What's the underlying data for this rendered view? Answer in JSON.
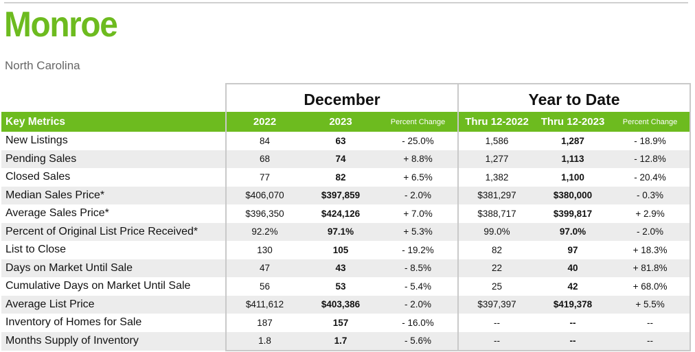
{
  "title": "Monroe",
  "subtitle": "North Carolina",
  "groups": {
    "month": "December",
    "ytd": "Year to Date"
  },
  "headers": [
    "Key Metrics",
    "2022",
    "2023",
    "Percent Change",
    "Thru 12-2022",
    "Thru 12-2023",
    "Percent Change"
  ],
  "colors": {
    "accent": "#6dbb1f",
    "stripe": "#ececec"
  },
  "rows": [
    [
      "New Listings",
      "84",
      "63",
      "- 25.0%",
      "1,586",
      "1,287",
      "- 18.9%"
    ],
    [
      "Pending Sales",
      "68",
      "74",
      "+ 8.8%",
      "1,277",
      "1,113",
      "- 12.8%"
    ],
    [
      "Closed Sales",
      "77",
      "82",
      "+ 6.5%",
      "1,382",
      "1,100",
      "- 20.4%"
    ],
    [
      "Median Sales Price*",
      "$406,070",
      "$397,859",
      "- 2.0%",
      "$381,297",
      "$380,000",
      "- 0.3%"
    ],
    [
      "Average Sales Price*",
      "$396,350",
      "$424,126",
      "+ 7.0%",
      "$388,717",
      "$399,817",
      "+ 2.9%"
    ],
    [
      "Percent of Original List Price Received*",
      "92.2%",
      "97.1%",
      "+ 5.3%",
      "99.0%",
      "97.0%",
      "- 2.0%"
    ],
    [
      "List to Close",
      "130",
      "105",
      "- 19.2%",
      "82",
      "97",
      "+ 18.3%"
    ],
    [
      "Days on Market Until Sale",
      "47",
      "43",
      "- 8.5%",
      "22",
      "40",
      "+ 81.8%"
    ],
    [
      "Cumulative Days on Market Until Sale",
      "56",
      "53",
      "- 5.4%",
      "25",
      "42",
      "+ 68.0%"
    ],
    [
      "Average List Price",
      "$411,612",
      "$403,386",
      "- 2.0%",
      "$397,397",
      "$419,378",
      "+ 5.5%"
    ],
    [
      "Inventory of Homes for Sale",
      "187",
      "157",
      "- 16.0%",
      "--",
      "--",
      "--"
    ],
    [
      "Months Supply of Inventory",
      "1.8",
      "1.7",
      "- 5.6%",
      "--",
      "--",
      "--"
    ]
  ]
}
